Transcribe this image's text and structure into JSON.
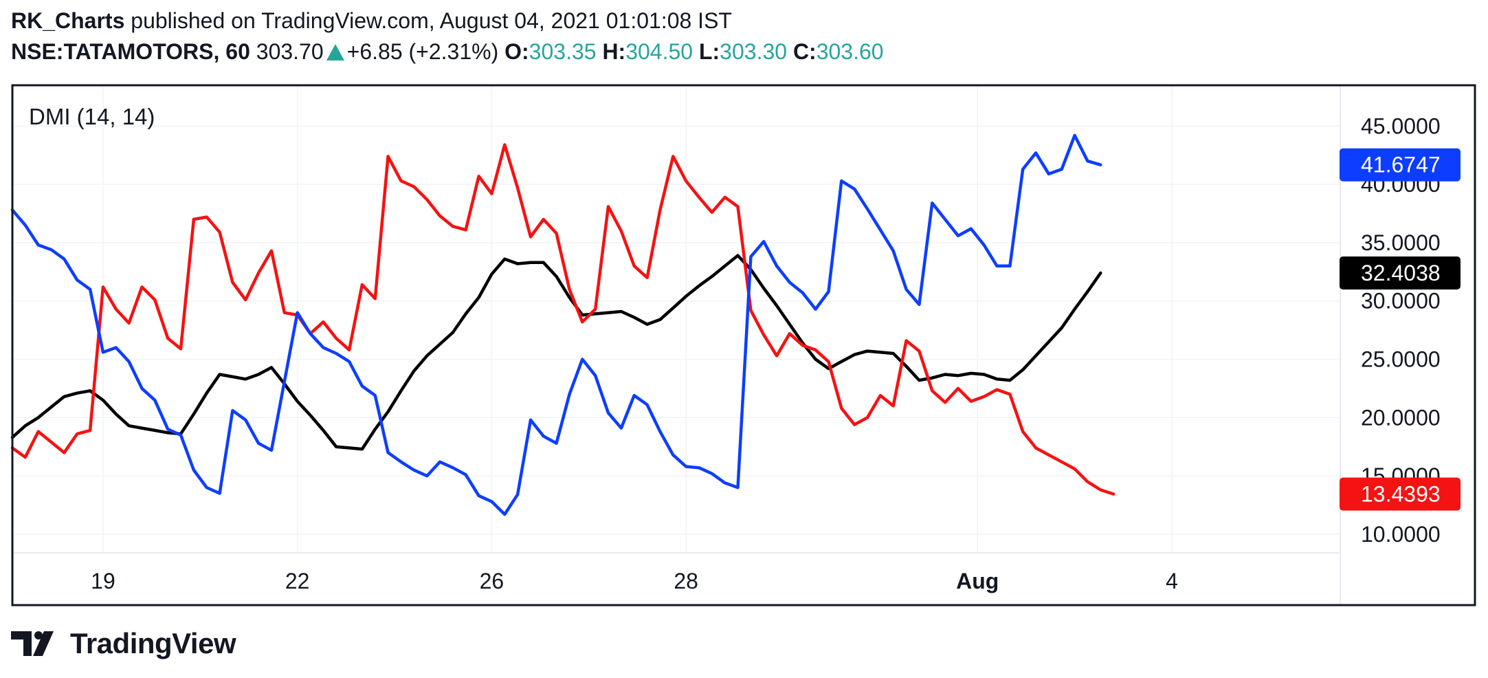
{
  "header": {
    "author": "RK_Charts",
    "published_text": "published on TradingView.com, August 04, 2021 01:01:08 IST",
    "symbol": "NSE:TATAMOTORS, 60",
    "price": "303.70",
    "change": "+6.85 (+2.31%)",
    "open_label": "O:",
    "open": "303.35",
    "high_label": "H:",
    "high": "304.50",
    "low_label": "L:",
    "low": "303.30",
    "close_label": "C:",
    "close": "303.60"
  },
  "footer": {
    "brand": "TradingView"
  },
  "colors": {
    "plus_di": "#0d3eff",
    "minus_di": "#f51212",
    "adx": "#000000",
    "up": "#26a69a"
  },
  "chart_data": {
    "type": "line",
    "title": "DMI (14, 14)",
    "ylim": [
      8.4,
      48.5
    ],
    "y_ticks": [
      "10.0000",
      "15.0000",
      "20.0000",
      "25.0000",
      "30.0000",
      "35.0000",
      "40.0000",
      "45.0000"
    ],
    "x_ticks": [
      {
        "label": "19",
        "index": 14,
        "bold": false
      },
      {
        "label": "22",
        "index": 44,
        "bold": false
      },
      {
        "label": "26",
        "index": 74,
        "bold": false
      },
      {
        "label": "28",
        "index": 104,
        "bold": false
      },
      {
        "label": "Aug",
        "index": 149,
        "bold": true
      },
      {
        "label": "4",
        "index": 179,
        "bold": false
      }
    ],
    "x_range": [
      0,
      205
    ],
    "series": [
      {
        "key": "plus_di",
        "last_label": "41.6747",
        "points": [
          [
            0,
            37.8
          ],
          [
            2,
            36.5
          ],
          [
            4,
            34.8
          ],
          [
            6,
            34.4
          ],
          [
            8,
            33.6
          ],
          [
            10,
            31.8
          ],
          [
            12,
            31.0
          ],
          [
            14,
            25.6
          ],
          [
            16,
            26.0
          ],
          [
            18,
            24.8
          ],
          [
            20,
            22.5
          ],
          [
            22,
            21.5
          ],
          [
            24,
            19.0
          ],
          [
            26,
            18.5
          ],
          [
            28,
            15.5
          ],
          [
            30,
            14.0
          ],
          [
            32,
            13.5
          ],
          [
            34,
            20.6
          ],
          [
            36,
            19.8
          ],
          [
            38,
            17.8
          ],
          [
            40,
            17.2
          ],
          [
            44,
            29.0
          ],
          [
            46,
            27.2
          ],
          [
            48,
            26.0
          ],
          [
            50,
            25.5
          ],
          [
            52,
            24.8
          ],
          [
            54,
            22.7
          ],
          [
            56,
            21.9
          ],
          [
            58,
            17.0
          ],
          [
            60,
            16.2
          ],
          [
            62,
            15.5
          ],
          [
            64,
            15.0
          ],
          [
            66,
            16.2
          ],
          [
            68,
            15.7
          ],
          [
            70,
            15.1
          ],
          [
            72,
            13.3
          ],
          [
            74,
            12.8
          ],
          [
            76,
            11.7
          ],
          [
            78,
            13.4
          ],
          [
            80,
            19.8
          ],
          [
            82,
            18.4
          ],
          [
            84,
            17.8
          ],
          [
            86,
            22.0
          ],
          [
            88,
            25.0
          ],
          [
            90,
            23.6
          ],
          [
            92,
            20.4
          ],
          [
            94,
            19.1
          ],
          [
            96,
            21.9
          ],
          [
            98,
            21.1
          ],
          [
            100,
            18.8
          ],
          [
            102,
            16.8
          ],
          [
            104,
            15.8
          ],
          [
            106,
            15.7
          ],
          [
            108,
            15.2
          ],
          [
            110,
            14.4
          ],
          [
            112,
            14.0
          ],
          [
            114,
            33.8
          ],
          [
            116,
            35.1
          ],
          [
            118,
            33.0
          ],
          [
            120,
            31.6
          ],
          [
            122,
            30.7
          ],
          [
            124,
            29.3
          ],
          [
            126,
            30.8
          ],
          [
            128,
            40.3
          ],
          [
            130,
            39.6
          ],
          [
            132,
            37.9
          ],
          [
            134,
            36.1
          ],
          [
            136,
            34.3
          ],
          [
            138,
            31.0
          ],
          [
            140,
            29.7
          ],
          [
            142,
            38.4
          ],
          [
            144,
            37.0
          ],
          [
            146,
            35.6
          ],
          [
            148,
            36.2
          ],
          [
            150,
            34.8
          ],
          [
            152,
            33.0
          ],
          [
            154,
            33.0
          ],
          [
            156,
            41.3
          ],
          [
            158,
            42.7
          ],
          [
            160,
            40.9
          ],
          [
            162,
            41.3
          ],
          [
            164,
            44.2
          ],
          [
            166,
            42.0
          ],
          [
            168,
            41.6747
          ]
        ]
      },
      {
        "key": "minus_di",
        "last_label": "13.4393",
        "points": [
          [
            0,
            17.4
          ],
          [
            2,
            16.6
          ],
          [
            4,
            18.8
          ],
          [
            6,
            17.9
          ],
          [
            8,
            17.0
          ],
          [
            10,
            18.6
          ],
          [
            12,
            18.9
          ],
          [
            14,
            31.2
          ],
          [
            16,
            29.3
          ],
          [
            18,
            28.1
          ],
          [
            20,
            31.2
          ],
          [
            22,
            30.1
          ],
          [
            24,
            26.8
          ],
          [
            26,
            25.9
          ],
          [
            28,
            37.0
          ],
          [
            30,
            37.2
          ],
          [
            32,
            35.9
          ],
          [
            34,
            31.6
          ],
          [
            36,
            30.1
          ],
          [
            38,
            32.4
          ],
          [
            40,
            34.3
          ],
          [
            42,
            29.0
          ],
          [
            44,
            28.8
          ],
          [
            46,
            27.2
          ],
          [
            48,
            28.2
          ],
          [
            50,
            26.8
          ],
          [
            52,
            25.8
          ],
          [
            54,
            31.4
          ],
          [
            56,
            30.2
          ],
          [
            58,
            42.4
          ],
          [
            60,
            40.3
          ],
          [
            62,
            39.8
          ],
          [
            64,
            38.7
          ],
          [
            66,
            37.3
          ],
          [
            68,
            36.4
          ],
          [
            70,
            36.1
          ],
          [
            72,
            40.7
          ],
          [
            74,
            39.2
          ],
          [
            76,
            43.4
          ],
          [
            78,
            39.7
          ],
          [
            80,
            35.5
          ],
          [
            82,
            37.0
          ],
          [
            84,
            35.8
          ],
          [
            86,
            31.0
          ],
          [
            88,
            28.2
          ],
          [
            90,
            29.3
          ],
          [
            92,
            38.1
          ],
          [
            94,
            36.0
          ],
          [
            96,
            33.0
          ],
          [
            98,
            32.0
          ],
          [
            100,
            37.8
          ],
          [
            102,
            42.4
          ],
          [
            104,
            40.3
          ],
          [
            106,
            38.9
          ],
          [
            108,
            37.6
          ],
          [
            110,
            38.9
          ],
          [
            112,
            38.1
          ],
          [
            114,
            29.2
          ],
          [
            116,
            27.1
          ],
          [
            118,
            25.3
          ],
          [
            120,
            27.2
          ],
          [
            122,
            26.2
          ],
          [
            124,
            25.8
          ],
          [
            126,
            24.8
          ],
          [
            128,
            20.8
          ],
          [
            130,
            19.4
          ],
          [
            132,
            20.0
          ],
          [
            134,
            21.9
          ],
          [
            136,
            21.0
          ],
          [
            138,
            26.6
          ],
          [
            140,
            25.7
          ],
          [
            142,
            22.3
          ],
          [
            144,
            21.3
          ],
          [
            146,
            22.5
          ],
          [
            148,
            21.4
          ],
          [
            150,
            21.8
          ],
          [
            152,
            22.4
          ],
          [
            154,
            22.0
          ],
          [
            156,
            18.8
          ],
          [
            158,
            17.4
          ],
          [
            160,
            16.8
          ],
          [
            162,
            16.2
          ],
          [
            164,
            15.6
          ],
          [
            166,
            14.5
          ],
          [
            168,
            13.8
          ],
          [
            170,
            13.4393
          ]
        ]
      },
      {
        "key": "adx",
        "last_label": "32.4038",
        "points": [
          [
            0,
            18.3
          ],
          [
            2,
            19.3
          ],
          [
            4,
            20.0
          ],
          [
            6,
            20.9
          ],
          [
            8,
            21.8
          ],
          [
            10,
            22.1
          ],
          [
            12,
            22.3
          ],
          [
            14,
            21.5
          ],
          [
            16,
            20.3
          ],
          [
            18,
            19.3
          ],
          [
            20,
            19.1
          ],
          [
            22,
            18.9
          ],
          [
            24,
            18.7
          ],
          [
            26,
            18.6
          ],
          [
            28,
            20.3
          ],
          [
            30,
            22.1
          ],
          [
            32,
            23.7
          ],
          [
            34,
            23.5
          ],
          [
            36,
            23.3
          ],
          [
            38,
            23.7
          ],
          [
            40,
            24.3
          ],
          [
            42,
            22.9
          ],
          [
            44,
            21.4
          ],
          [
            46,
            20.2
          ],
          [
            48,
            18.9
          ],
          [
            50,
            17.5
          ],
          [
            52,
            17.4
          ],
          [
            54,
            17.3
          ],
          [
            56,
            19.0
          ],
          [
            58,
            20.5
          ],
          [
            60,
            22.3
          ],
          [
            62,
            24.0
          ],
          [
            64,
            25.3
          ],
          [
            66,
            26.3
          ],
          [
            68,
            27.3
          ],
          [
            70,
            28.9
          ],
          [
            72,
            30.3
          ],
          [
            74,
            32.3
          ],
          [
            76,
            33.6
          ],
          [
            78,
            33.2
          ],
          [
            80,
            33.3
          ],
          [
            82,
            33.3
          ],
          [
            84,
            32.1
          ],
          [
            86,
            30.3
          ],
          [
            88,
            28.8
          ],
          [
            90,
            28.9
          ],
          [
            92,
            29.0
          ],
          [
            94,
            29.1
          ],
          [
            96,
            28.6
          ],
          [
            98,
            28.0
          ],
          [
            100,
            28.4
          ],
          [
            102,
            29.4
          ],
          [
            104,
            30.4
          ],
          [
            106,
            31.3
          ],
          [
            108,
            32.1
          ],
          [
            110,
            33.0
          ],
          [
            112,
            33.9
          ],
          [
            114,
            32.7
          ],
          [
            116,
            31.1
          ],
          [
            118,
            29.6
          ],
          [
            120,
            28.0
          ],
          [
            122,
            26.4
          ],
          [
            124,
            25.0
          ],
          [
            126,
            24.2
          ],
          [
            128,
            24.8
          ],
          [
            130,
            25.4
          ],
          [
            132,
            25.7
          ],
          [
            134,
            25.6
          ],
          [
            136,
            25.5
          ],
          [
            138,
            24.4
          ],
          [
            140,
            23.2
          ],
          [
            142,
            23.4
          ],
          [
            144,
            23.7
          ],
          [
            146,
            23.6
          ],
          [
            148,
            23.8
          ],
          [
            150,
            23.7
          ],
          [
            152,
            23.3
          ],
          [
            154,
            23.2
          ],
          [
            156,
            24.1
          ],
          [
            158,
            25.3
          ],
          [
            160,
            26.5
          ],
          [
            162,
            27.7
          ],
          [
            164,
            29.3
          ],
          [
            166,
            30.8
          ],
          [
            168,
            32.4038
          ]
        ]
      }
    ]
  }
}
